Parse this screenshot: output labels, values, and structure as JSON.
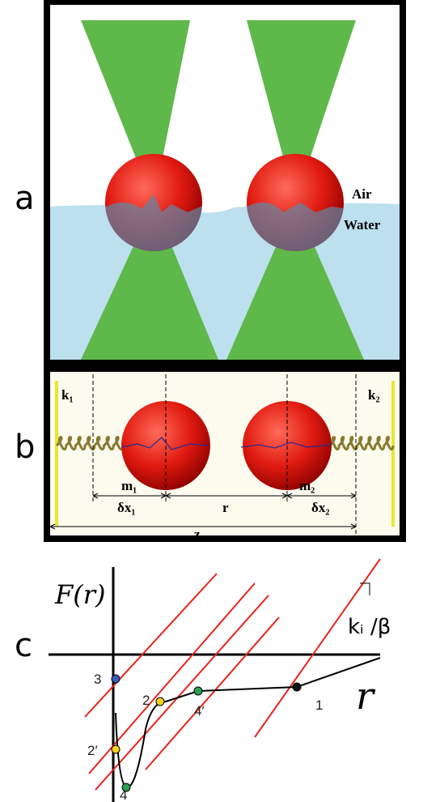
{
  "panel_a": {
    "label": "a",
    "air": "Air",
    "water": "Water"
  },
  "panel_b": {
    "label": "b",
    "k1": "k₁",
    "k2": "k₂",
    "m1": "m₁",
    "m2": "m₂",
    "dx1": "δx₁",
    "r": "r",
    "dx2": "δx₂",
    "z": "z"
  },
  "panel_c": {
    "label": "c",
    "y_axis": "F(r)",
    "slope": "kᵢ /β",
    "x_axis": "r",
    "points": [
      "3",
      "2",
      "2′",
      "4",
      "4′",
      "1"
    ]
  }
}
